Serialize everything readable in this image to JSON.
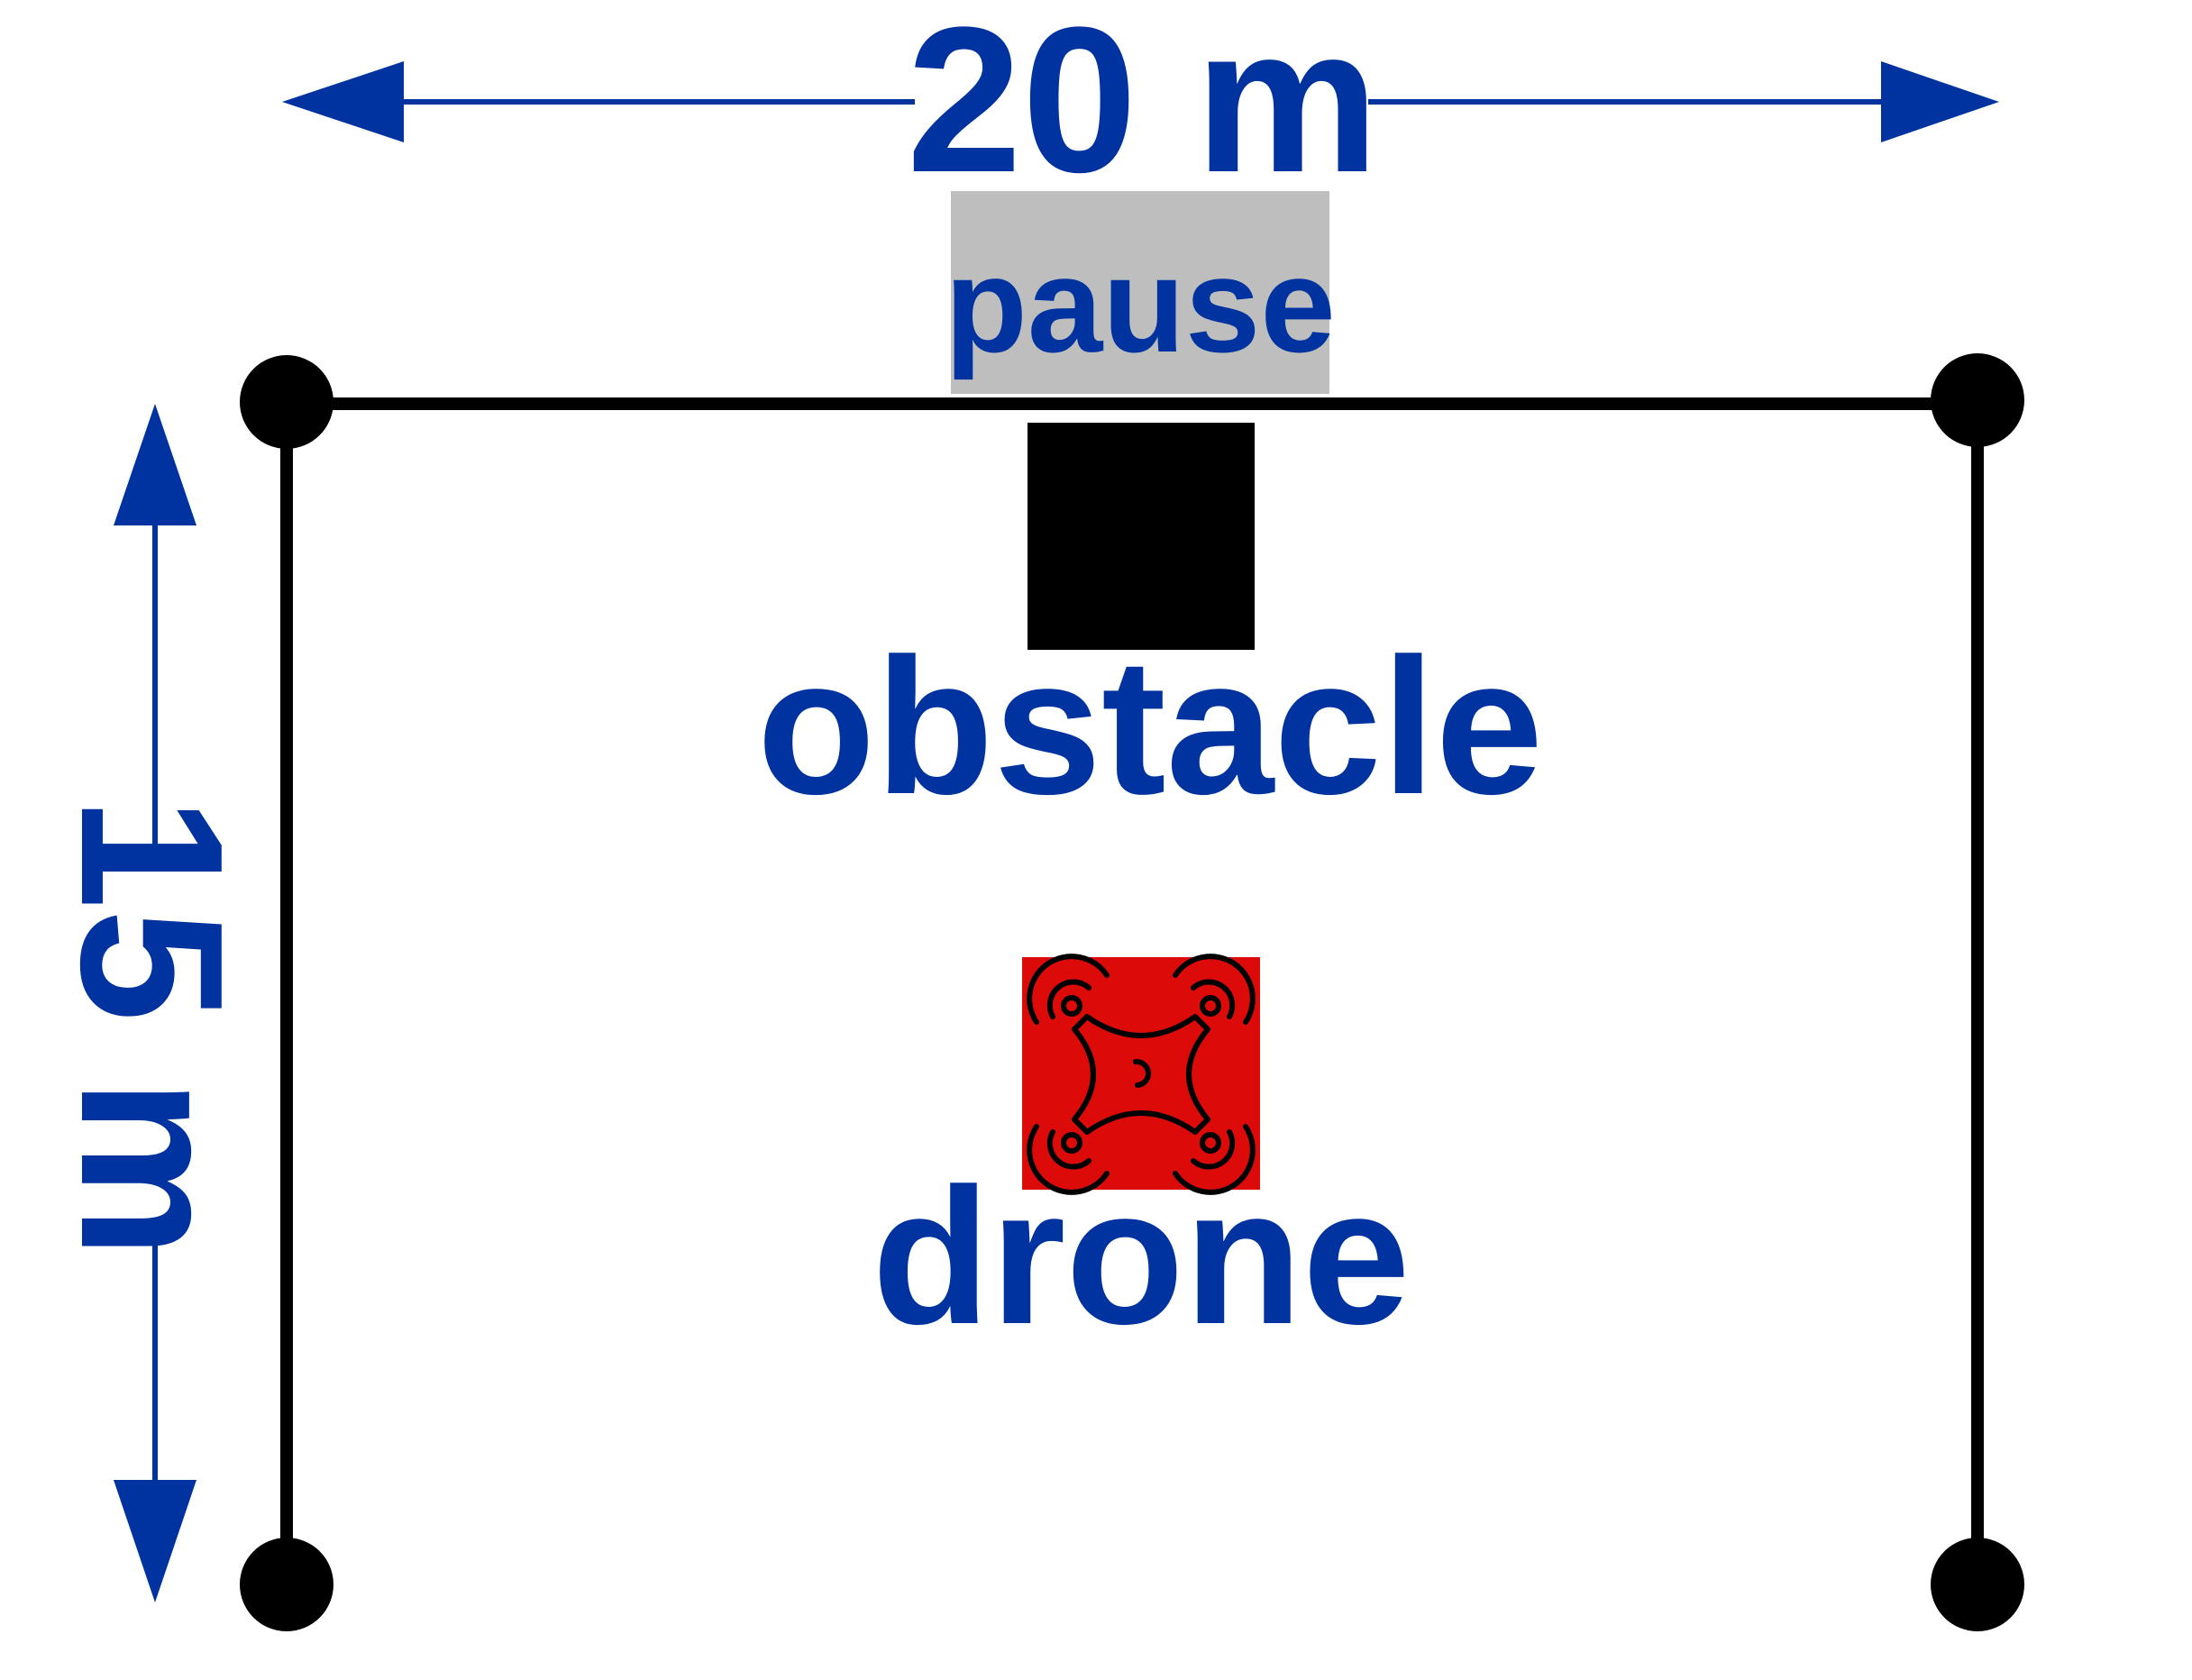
{
  "labels": {
    "width_dimension": "20 m",
    "height_dimension": "15 m",
    "pause": "pause",
    "obstacle": "obstacle",
    "drone": "drone"
  },
  "colors": {
    "text": "#0033A0",
    "arrows": "#0033A0",
    "frame": "#000000",
    "pause_box": "#BEBEBE",
    "obstacle_box": "#000000",
    "drone_box": "#DD0A0A",
    "drone_icon": "#000000",
    "background": "#FFFFFF"
  },
  "icons": {
    "drone": "quadcopter-drone-icon"
  }
}
